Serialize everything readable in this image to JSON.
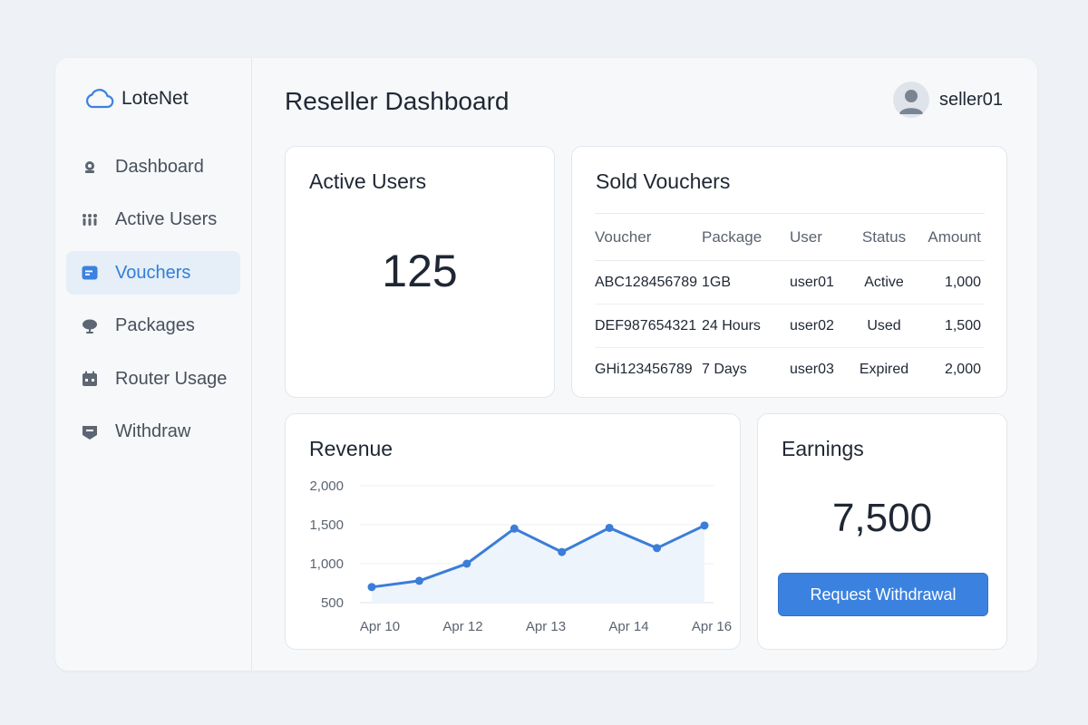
{
  "app": {
    "brand": "LoteNet",
    "page_title": "Reseller Dashboard",
    "accent_color": "#3b82e0"
  },
  "user": {
    "name": "seller01",
    "avatar_icon": "user-avatar-icon"
  },
  "sidebar": {
    "items": [
      {
        "label": "Dashboard",
        "icon": "dashboard-icon",
        "active": false
      },
      {
        "label": "Active Users",
        "icon": "users-icon",
        "active": false
      },
      {
        "label": "Vouchers",
        "icon": "voucher-icon",
        "active": true
      },
      {
        "label": "Packages",
        "icon": "packages-icon",
        "active": false
      },
      {
        "label": "Router Usage",
        "icon": "router-icon",
        "active": false
      },
      {
        "label": "Withdraw",
        "icon": "withdraw-icon",
        "active": false
      }
    ]
  },
  "active_users": {
    "title": "Active Users",
    "value": "125"
  },
  "vouchers": {
    "title": "Sold Vouchers",
    "columns": [
      "Voucher",
      "Package",
      "User",
      "Status",
      "Amount"
    ],
    "rows": [
      [
        "ABC128456789",
        "1GB",
        "user01",
        "Active",
        "1,000"
      ],
      [
        "DEF987654321",
        "24 Hours",
        "user02",
        "Used",
        "1,500"
      ],
      [
        "GHi123456789",
        "7 Days",
        "user03",
        "Expired",
        "2,000"
      ]
    ]
  },
  "revenue": {
    "title": "Revenue",
    "chart_data": {
      "type": "area",
      "title": "",
      "xlabel": "",
      "ylabel": "",
      "x_tick_labels": [
        "Apr 10",
        "Apr 12",
        "Apr 13",
        "Apr 14",
        "Apr 16"
      ],
      "y_tick_labels": [
        "2,000",
        "1,500",
        "1,000",
        "500"
      ],
      "y_ticks": [
        2000,
        1500,
        1000,
        500
      ],
      "ylim": [
        500,
        2000
      ],
      "grid": true,
      "line_color": "#3b7dd8",
      "series": [
        {
          "values": [
            700,
            780,
            1000,
            1450,
            1150,
            1460,
            1200,
            1490
          ]
        }
      ]
    }
  },
  "earnings": {
    "title": "Earnings",
    "value": "7,500",
    "button_label": "Request Withdrawal"
  }
}
